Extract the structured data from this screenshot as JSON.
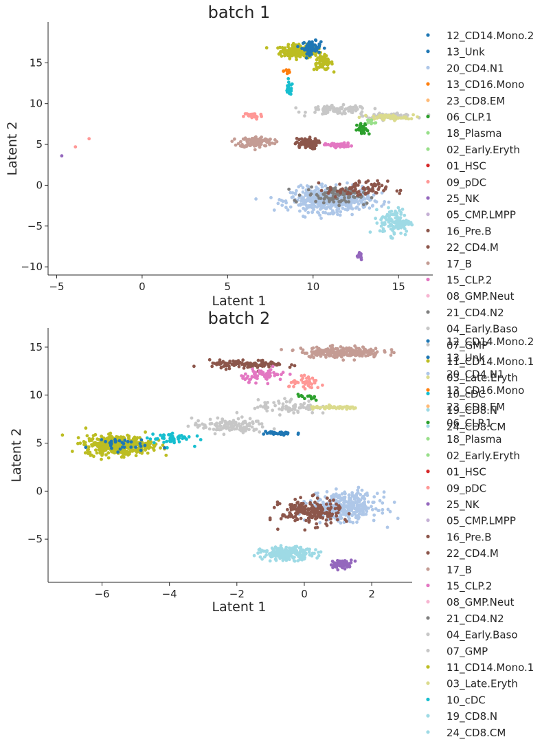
{
  "chart_data": [
    {
      "type": "scatter",
      "title": "batch 1",
      "xlabel": "Latent 1",
      "ylabel": "Latent 2",
      "xlim": [
        -5.5,
        17
      ],
      "ylim": [
        -11,
        20
      ],
      "xticks": [
        -5,
        0,
        5,
        10,
        15
      ],
      "yticks": [
        -10,
        -5,
        0,
        5,
        10,
        15
      ],
      "xtick_labels": [
        "−5",
        "0",
        "5",
        "10",
        "15"
      ],
      "ytick_labels": [
        "−10",
        "−5",
        "0",
        "5",
        "10",
        "15"
      ],
      "grid": false,
      "legend_placement": "right-outside",
      "legend": [
        "12_CD14.Mono.2",
        "13_Unk",
        "20_CD4.N1",
        "13_CD16.Mono",
        "23_CD8.EM",
        "06_CLP.1",
        "18_Plasma",
        "02_Early.Eryth",
        "01_HSC",
        "09_pDC",
        "25_NK",
        "05_CMP.LMPP",
        "16_Pre.B",
        "22_CD4.M",
        "17_B",
        "15_CLP.2",
        "08_GMP.Neut",
        "21_CD4.N2",
        "04_Early.Baso",
        "07_GMP",
        "11_CD14.Mono.1",
        "03_Late.Eryth",
        "10_cDC",
        "19_CD8.N",
        "24_CD8.CM"
      ],
      "clusters": [
        {
          "label": "11_CD14.Mono.1",
          "cx": 9.2,
          "cy": 16.4,
          "sx": 1.0,
          "sy": 0.7,
          "n": 220
        },
        {
          "label": "12_CD14.Mono.2",
          "cx": 9.9,
          "cy": 16.9,
          "sx": 0.5,
          "sy": 0.7,
          "n": 70
        },
        {
          "label": "11_CD14.Mono.1",
          "cx": 10.6,
          "cy": 15.0,
          "sx": 0.5,
          "sy": 0.8,
          "n": 60
        },
        {
          "label": "13_CD16.Mono",
          "cx": 8.5,
          "cy": 14.0,
          "sx": 0.2,
          "sy": 0.5,
          "n": 12
        },
        {
          "label": "10_cDC",
          "cx": 8.6,
          "cy": 11.8,
          "sx": 0.2,
          "sy": 0.7,
          "n": 25
        },
        {
          "label": "07_GMP",
          "cx": 11.5,
          "cy": 9.2,
          "sx": 1.6,
          "sy": 0.5,
          "n": 90
        },
        {
          "label": "07_GMP",
          "cx": 14.5,
          "cy": 8.5,
          "sx": 1.3,
          "sy": 0.25,
          "n": 70
        },
        {
          "label": "03_Late.Eryth",
          "cx": 14.3,
          "cy": 8.3,
          "sx": 1.4,
          "sy": 0.3,
          "n": 50
        },
        {
          "label": "09_pDC",
          "cx": 6.5,
          "cy": 8.5,
          "sx": 0.5,
          "sy": 0.4,
          "n": 30
        },
        {
          "label": "17_B",
          "cx": 6.7,
          "cy": 5.3,
          "sx": 0.9,
          "sy": 0.6,
          "n": 120
        },
        {
          "label": "22_CD4.M",
          "cx": 9.6,
          "cy": 5.1,
          "sx": 0.6,
          "sy": 0.6,
          "n": 70
        },
        {
          "label": "15_CLP.2",
          "cx": 11.5,
          "cy": 4.9,
          "sx": 0.7,
          "sy": 0.25,
          "n": 50
        },
        {
          "label": "06_CLP.1",
          "cx": 12.9,
          "cy": 6.7,
          "sx": 0.3,
          "sy": 0.8,
          "n": 30
        },
        {
          "label": "18_Plasma",
          "cx": 13.4,
          "cy": 7.8,
          "sx": 0.35,
          "sy": 0.3,
          "n": 15
        },
        {
          "label": "20_CD4.N1",
          "cx": 11.0,
          "cy": -1.8,
          "sx": 2.1,
          "sy": 1.3,
          "n": 500
        },
        {
          "label": "21_CD4.N2",
          "cx": 11.4,
          "cy": -1.2,
          "sx": 1.7,
          "sy": 1.0,
          "n": 90
        },
        {
          "label": "16_Pre.B",
          "cx": 12.6,
          "cy": -0.5,
          "sx": 1.6,
          "sy": 0.9,
          "n": 80
        },
        {
          "label": "24_CD8.CM",
          "cx": 14.8,
          "cy": -4.5,
          "sx": 0.8,
          "sy": 1.5,
          "n": 120
        },
        {
          "label": "25_NK",
          "cx": 12.7,
          "cy": -8.6,
          "sx": 0.2,
          "sy": 0.5,
          "n": 18
        },
        {
          "label": "09_pDC",
          "cx": -3.9,
          "cy": 4.7,
          "sx": 0.1,
          "sy": 0.1,
          "n": 1
        },
        {
          "label": "09_pDC",
          "cx": -3.1,
          "cy": 5.7,
          "sx": 0.1,
          "sy": 0.1,
          "n": 1
        },
        {
          "label": "25_NK",
          "cx": -4.7,
          "cy": 3.6,
          "sx": 0.1,
          "sy": 0.1,
          "n": 1
        }
      ]
    },
    {
      "type": "scatter",
      "title": "batch 2",
      "xlabel": "Latent 1",
      "ylabel": "Latent 2",
      "xlim": [
        -7.6,
        3.2
      ],
      "ylim": [
        -9.5,
        17
      ],
      "xticks": [
        -6,
        -4,
        -2,
        0,
        2
      ],
      "yticks": [
        -5,
        0,
        5,
        10,
        15
      ],
      "xtick_labels": [
        "−6",
        "−4",
        "−2",
        "0",
        "2"
      ],
      "ytick_labels": [
        "−5",
        "0",
        "5",
        "10",
        "15"
      ],
      "grid": false,
      "legend_placement": "right-outside",
      "legend": [
        "12_CD14.Mono.2",
        "13_Unk",
        "20_CD4.N1",
        "13_CD16.Mono",
        "23_CD8.EM",
        "06_CLP.1",
        "18_Plasma",
        "02_Early.Eryth",
        "01_HSC",
        "09_pDC",
        "25_NK",
        "05_CMP.LMPP",
        "16_Pre.B",
        "22_CD4.M",
        "17_B",
        "15_CLP.2",
        "08_GMP.Neut",
        "21_CD4.N2",
        "04_Early.Baso",
        "07_GMP",
        "11_CD14.Mono.1",
        "03_Late.Eryth",
        "10_cDC",
        "19_CD8.N",
        "24_CD8.CM"
      ],
      "clusters": [
        {
          "label": "11_CD14.Mono.1",
          "cx": -5.5,
          "cy": 4.8,
          "sx": 0.9,
          "sy": 0.9,
          "n": 420
        },
        {
          "label": "10_cDC",
          "cx": -4.0,
          "cy": 5.5,
          "sx": 0.6,
          "sy": 0.6,
          "n": 50
        },
        {
          "label": "12_CD14.Mono.2",
          "cx": -5.6,
          "cy": 4.9,
          "sx": 0.8,
          "sy": 0.7,
          "n": 30
        },
        {
          "label": "07_GMP",
          "cx": -2.2,
          "cy": 6.8,
          "sx": 1.0,
          "sy": 0.7,
          "n": 120
        },
        {
          "label": "07_GMP",
          "cx": -0.5,
          "cy": 8.8,
          "sx": 0.8,
          "sy": 0.7,
          "n": 70
        },
        {
          "label": "17_B",
          "cx": 1.1,
          "cy": 14.5,
          "sx": 1.1,
          "sy": 0.5,
          "n": 220
        },
        {
          "label": "22_CD4.M",
          "cx": -1.7,
          "cy": 13.2,
          "sx": 1.0,
          "sy": 0.4,
          "n": 110
        },
        {
          "label": "15_CLP.2",
          "cx": -1.2,
          "cy": 12.1,
          "sx": 0.6,
          "sy": 0.6,
          "n": 60
        },
        {
          "label": "09_pDC",
          "cx": 0.1,
          "cy": 11.2,
          "sx": 0.5,
          "sy": 0.6,
          "n": 40
        },
        {
          "label": "03_Late.Eryth",
          "cx": 0.9,
          "cy": 8.7,
          "sx": 0.7,
          "sy": 0.15,
          "n": 50
        },
        {
          "label": "13_Unk",
          "cx": -0.8,
          "cy": 6.0,
          "sx": 0.5,
          "sy": 0.2,
          "n": 35
        },
        {
          "label": "06_CLP.1",
          "cx": 0.1,
          "cy": 9.8,
          "sx": 0.3,
          "sy": 0.4,
          "n": 15
        },
        {
          "label": "20_CD4.N1",
          "cx": 1.2,
          "cy": -1.6,
          "sx": 0.9,
          "sy": 1.3,
          "n": 360
        },
        {
          "label": "16_Pre.B",
          "cx": 0.2,
          "cy": -2.2,
          "sx": 0.8,
          "sy": 1.2,
          "n": 200
        },
        {
          "label": "24_CD8.CM",
          "cx": -0.5,
          "cy": -6.5,
          "sx": 0.7,
          "sy": 0.6,
          "n": 220
        },
        {
          "label": "25_NK",
          "cx": 1.1,
          "cy": -7.6,
          "sx": 0.3,
          "sy": 0.4,
          "n": 50
        }
      ]
    }
  ],
  "palette": {
    "12_CD14.Mono.2": "#1f77b4",
    "13_Unk": "#1f77b4",
    "20_CD4.N1": "#aec7e8",
    "13_CD16.Mono": "#ff7f0e",
    "23_CD8.EM": "#ffbb78",
    "06_CLP.1": "#2ca02c",
    "18_Plasma": "#98df8a",
    "02_Early.Eryth": "#98df8a",
    "01_HSC": "#d62728",
    "09_pDC": "#ff9896",
    "25_NK": "#9467bd",
    "05_CMP.LMPP": "#c5b0d5",
    "16_Pre.B": "#8c564b",
    "22_CD4.M": "#8c564b",
    "17_B": "#c49c94",
    "15_CLP.2": "#e377c2",
    "08_GMP.Neut": "#f7b6d2",
    "21_CD4.N2": "#7f7f7f",
    "04_Early.Baso": "#c7c7c7",
    "07_GMP": "#c7c7c7",
    "11_CD14.Mono.1": "#bcbd22",
    "03_Late.Eryth": "#dbdb8d",
    "10_cDC": "#17becf",
    "19_CD8.N": "#9edae5",
    "24_CD8.CM": "#9edae5"
  }
}
